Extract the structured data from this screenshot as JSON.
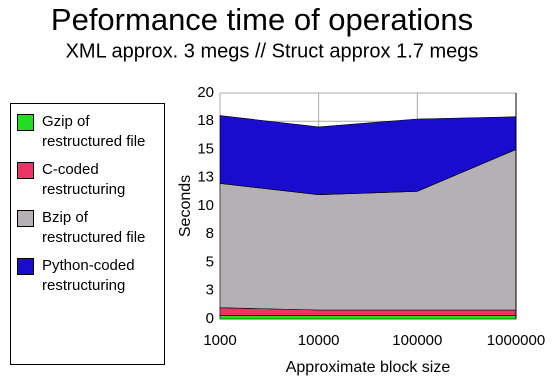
{
  "chart_data": {
    "type": "stacked_area",
    "title": "Peformance time of operations",
    "subtitle": "XML approx. 3 megs // Struct approx 1.7 megs",
    "x_label": "Approximate block size",
    "y_label": "Seconds",
    "x": [
      1000,
      10000,
      100000,
      1000000
    ],
    "xlim": [
      1000,
      1000000
    ],
    "xticks": [
      1000,
      10000,
      100000,
      1000000
    ],
    "xlog": true,
    "ylim": [
      0,
      20
    ],
    "yticks": [
      0,
      {
        "value": 2.5,
        "label": "3"
      },
      5,
      {
        "value": 7.5,
        "label": "8"
      },
      10,
      {
        "value": 12.5,
        "label": "13"
      },
      15,
      {
        "value": 17.5,
        "label": "18"
      },
      20
    ],
    "grid": true,
    "series": [
      {
        "name": "Gzip of restructured file",
        "color": "#22dd22",
        "values": [
          0.3,
          0.3,
          0.3,
          0.3
        ]
      },
      {
        "name": "C-coded restructuring",
        "color": "#ee3366",
        "values": [
          0.7,
          0.5,
          0.5,
          0.5
        ]
      },
      {
        "name": "Bzip of restructured file",
        "color": "#b4b0b4",
        "values": [
          11.0,
          10.2,
          10.5,
          14.2
        ]
      },
      {
        "name": "Python-coded restructuring",
        "color": "#1a0ccc",
        "values": [
          6.0,
          6.0,
          6.4,
          2.9
        ]
      }
    ]
  }
}
